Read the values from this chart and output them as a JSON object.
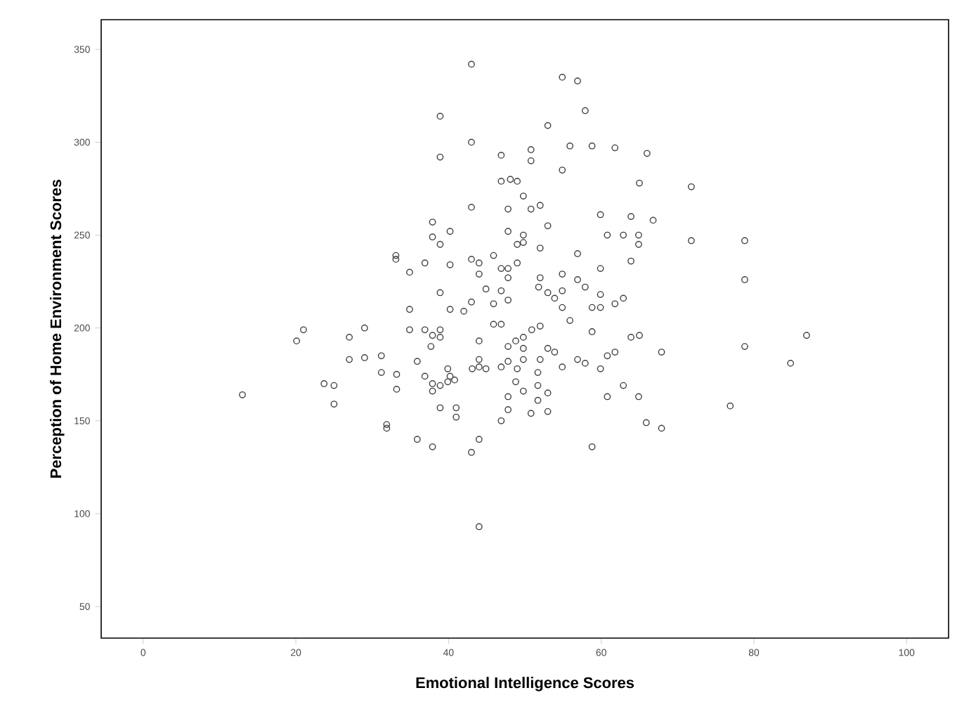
{
  "chart_data": {
    "type": "scatter",
    "xlabel": "Emotional Intelligence Scores",
    "ylabel": "Perception of Home Environment Scores",
    "xlim": [
      -5.5,
      105.5
    ],
    "ylim": [
      33,
      366
    ],
    "xticks": [
      0,
      20,
      40,
      60,
      80,
      100
    ],
    "yticks": [
      50,
      100,
      150,
      200,
      250,
      300,
      350
    ],
    "grid": false,
    "marker": "circle",
    "series": [
      {
        "color": "#404040",
        "x": [
          43,
          54.9,
          56.9,
          57.9,
          38.9,
          53,
          43,
          50.8,
          55.9,
          58.8,
          61.8,
          66,
          38.9,
          46.9,
          50.8,
          54.9,
          46.9,
          48.1,
          49,
          65,
          71.8,
          49.8,
          52,
          50.8,
          43,
          47.8,
          59.9,
          63.9,
          66.8,
          53,
          37.9,
          37.9,
          40.2,
          38.9,
          47.8,
          49.8,
          49.8,
          49,
          60.8,
          62.9,
          64.9,
          64.9,
          71.8,
          78.8,
          52,
          33.1,
          33.1,
          36.9,
          40.2,
          43,
          45.9,
          44,
          46.9,
          47.8,
          49,
          56.9,
          59.9,
          63.9,
          34.9,
          44,
          47.8,
          52,
          54.9,
          56.9,
          57.9,
          78.8,
          44.9,
          51.8,
          53,
          53.9,
          54.9,
          38.9,
          46.9,
          47.8,
          45.9,
          43,
          42,
          59.9,
          62.9,
          61.8,
          59.9,
          58.8,
          54.9,
          40.2,
          34.9,
          46.9,
          45.9,
          55.9,
          52,
          50.9,
          34.9,
          36.9,
          38.9,
          37.9,
          38.9,
          29,
          27,
          21,
          20.1,
          58.8,
          49.8,
          48.8,
          44,
          63.9,
          65,
          86.9,
          37.7,
          47.8,
          49.8,
          53,
          53.9,
          78.8,
          67.9,
          61.8,
          60.8,
          31.2,
          29,
          27,
          35.9,
          44,
          47.8,
          49.8,
          52,
          56.9,
          57.9,
          59.9,
          54.9,
          84.8,
          43.1,
          44,
          44.9,
          46.9,
          49,
          39.9,
          31.2,
          33.2,
          36.9,
          40.2,
          40.8,
          39.9,
          51.7,
          37.9,
          38.9,
          48.8,
          23.7,
          25,
          33.2,
          37.9,
          51.7,
          53,
          49.8,
          62.9,
          13,
          47.8,
          60.8,
          64.9,
          51.7,
          25,
          38.9,
          41,
          41,
          47.8,
          50.8,
          53,
          76.9,
          46.9,
          31.9,
          31.9,
          65.9,
          67.9,
          35.9,
          44,
          37.9,
          43,
          58.8,
          44
        ],
        "values": [
          342,
          335,
          333,
          317,
          314,
          309,
          300,
          296,
          298,
          298,
          297,
          294,
          292,
          293,
          290,
          285,
          279,
          280,
          279,
          278,
          276,
          271,
          266,
          264,
          265,
          264,
          261,
          260,
          258,
          255,
          257,
          249,
          252,
          245,
          252,
          250,
          246,
          245,
          250,
          250,
          250,
          245,
          247,
          247,
          243,
          239,
          237,
          235,
          234,
          237,
          239,
          235,
          232,
          232,
          235,
          240,
          232,
          236,
          230,
          229,
          227,
          227,
          229,
          226,
          222,
          226,
          221,
          222,
          219,
          216,
          220,
          219,
          220,
          215,
          213,
          214,
          209,
          218,
          216,
          213,
          211,
          211,
          211,
          210,
          210,
          202,
          202,
          204,
          201,
          199,
          199,
          199,
          199,
          196,
          195,
          200,
          195,
          199,
          193,
          198,
          195,
          193,
          193,
          195,
          196,
          196,
          190,
          190,
          189,
          189,
          187,
          190,
          187,
          187,
          185,
          185,
          184,
          183,
          182,
          183,
          182,
          183,
          183,
          183,
          181,
          178,
          179,
          181,
          178,
          179,
          178,
          179,
          178,
          178,
          176,
          175,
          174,
          174,
          172,
          171,
          176,
          170,
          169,
          171,
          170,
          169,
          167,
          166,
          169,
          165,
          166,
          169,
          164,
          163,
          163,
          163,
          161,
          159,
          157,
          157,
          152,
          156,
          154,
          155,
          158,
          150,
          148,
          146,
          149,
          146,
          140,
          140,
          136,
          133,
          136,
          93
        ]
      }
    ]
  }
}
